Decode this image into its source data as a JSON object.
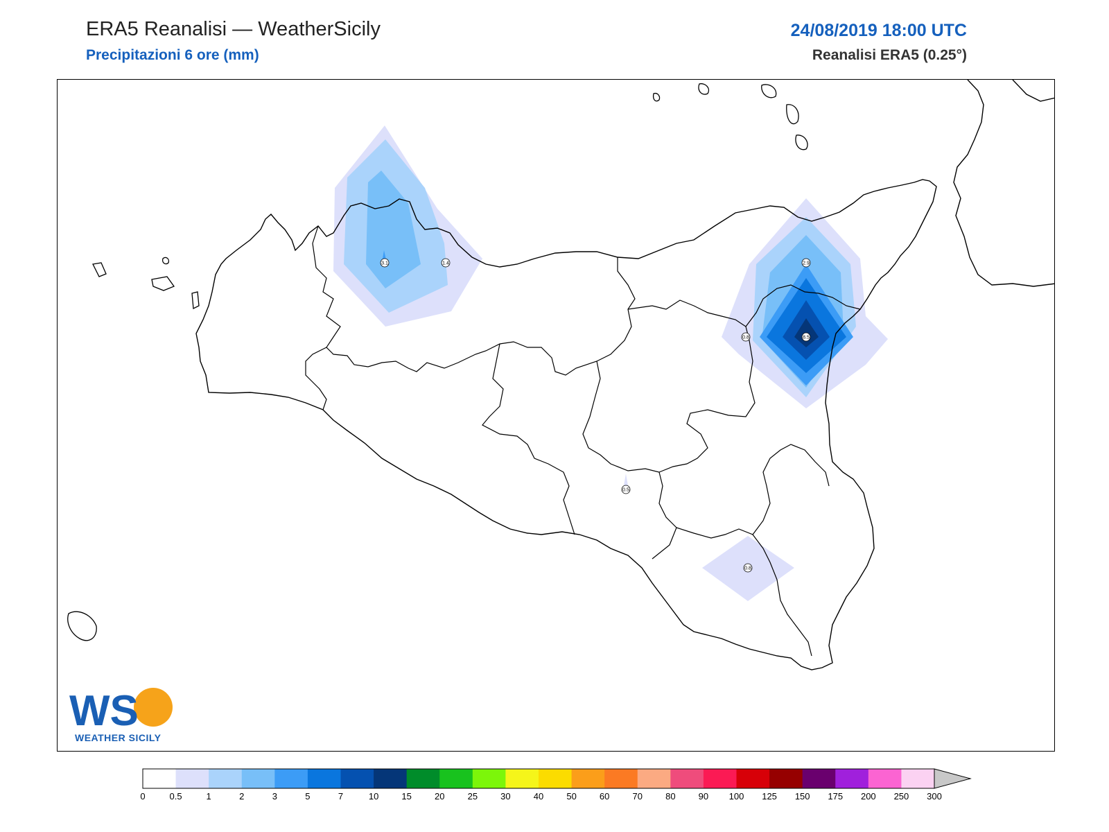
{
  "header": {
    "title": "ERA5 Reanalisi — WeatherSicily",
    "subtitle": "Precipitazioni 6 ore (mm)",
    "datetime": "24/08/2019 18:00 UTC",
    "model": "Reanalisi ERA5 (0.25°)"
  },
  "logo": {
    "letters": "WS",
    "name": "WEATHER SICILY"
  },
  "station_values": [
    {
      "id": "palermo-west",
      "label": "3.1"
    },
    {
      "id": "palermo-east",
      "label": "1.4"
    },
    {
      "id": "messina-north",
      "label": "2.9"
    },
    {
      "id": "etna-west",
      "label": "0.8"
    },
    {
      "id": "etna-peak",
      "label": "8.5"
    },
    {
      "id": "caltanissetta",
      "label": "0.5"
    },
    {
      "id": "hyblaean",
      "label": "0.8"
    }
  ],
  "colorbar": {
    "labels": [
      "0",
      "0.5",
      "1",
      "2",
      "3",
      "5",
      "7",
      "10",
      "15",
      "20",
      "25",
      "30",
      "40",
      "50",
      "60",
      "70",
      "80",
      "90",
      "100",
      "125",
      "150",
      "175",
      "200",
      "250",
      "300"
    ],
    "colors": [
      "#ffffff",
      "#dde0fb",
      "#aad3fb",
      "#78bff8",
      "#3c9cf6",
      "#0a76de",
      "#0551b0",
      "#053678",
      "#008c2a",
      "#18c21e",
      "#7cf60a",
      "#f5f51a",
      "#fbdc00",
      "#fb9e1a",
      "#fb7a23",
      "#fbaa82",
      "#ef4c7c",
      "#fb1a54",
      "#d70008",
      "#960000",
      "#6a006e",
      "#a020dc",
      "#fb64d2",
      "#fbd2f2"
    ],
    "extend_color": "#c8c8c8"
  }
}
